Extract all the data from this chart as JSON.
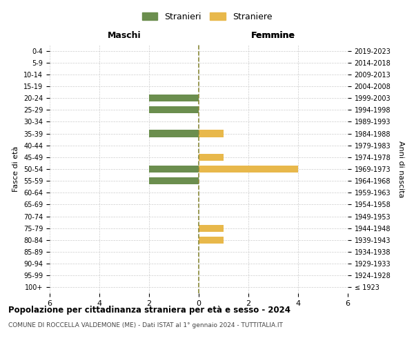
{
  "age_groups": [
    "100+",
    "95-99",
    "90-94",
    "85-89",
    "80-84",
    "75-79",
    "70-74",
    "65-69",
    "60-64",
    "55-59",
    "50-54",
    "45-49",
    "40-44",
    "35-39",
    "30-34",
    "25-29",
    "20-24",
    "15-19",
    "10-14",
    "5-9",
    "0-4"
  ],
  "birth_years": [
    "≤ 1923",
    "1924-1928",
    "1929-1933",
    "1934-1938",
    "1939-1943",
    "1944-1948",
    "1949-1953",
    "1954-1958",
    "1959-1963",
    "1964-1968",
    "1969-1973",
    "1974-1978",
    "1979-1983",
    "1984-1988",
    "1989-1993",
    "1994-1998",
    "1999-2003",
    "2004-2008",
    "2009-2013",
    "2014-2018",
    "2019-2023"
  ],
  "males": [
    0,
    0,
    0,
    0,
    0,
    0,
    0,
    0,
    0,
    -2,
    -2,
    0,
    0,
    -2,
    0,
    -2,
    -2,
    0,
    0,
    0,
    0
  ],
  "females": [
    0,
    0,
    0,
    0,
    1,
    1,
    0,
    0,
    0,
    0,
    4,
    1,
    0,
    1,
    0,
    0,
    0,
    0,
    0,
    0,
    0
  ],
  "male_color": "#6b8e4e",
  "female_color": "#e8b84b",
  "title_main": "Popolazione per cittadinanza straniera per età e sesso - 2024",
  "title_sub": "COMUNE DI ROCCELLA VALDEMONE (ME) - Dati ISTAT al 1° gennaio 2024 - TUTTITALIA.IT",
  "xlabel_left": "Maschi",
  "xlabel_right": "Femmine",
  "ylabel_left": "Fasce di età",
  "ylabel_right": "Anni di nascita",
  "legend_male": "Stranieri",
  "legend_female": "Straniere",
  "xlim": 6,
  "xticks": [
    -6,
    -4,
    -2,
    0,
    2,
    4,
    6
  ],
  "xticklabels": [
    "6",
    "4",
    "2",
    "0",
    "2",
    "4",
    "6"
  ],
  "background_color": "#ffffff",
  "grid_color": "#cccccc",
  "dashed_line_color": "#8a8a3a"
}
